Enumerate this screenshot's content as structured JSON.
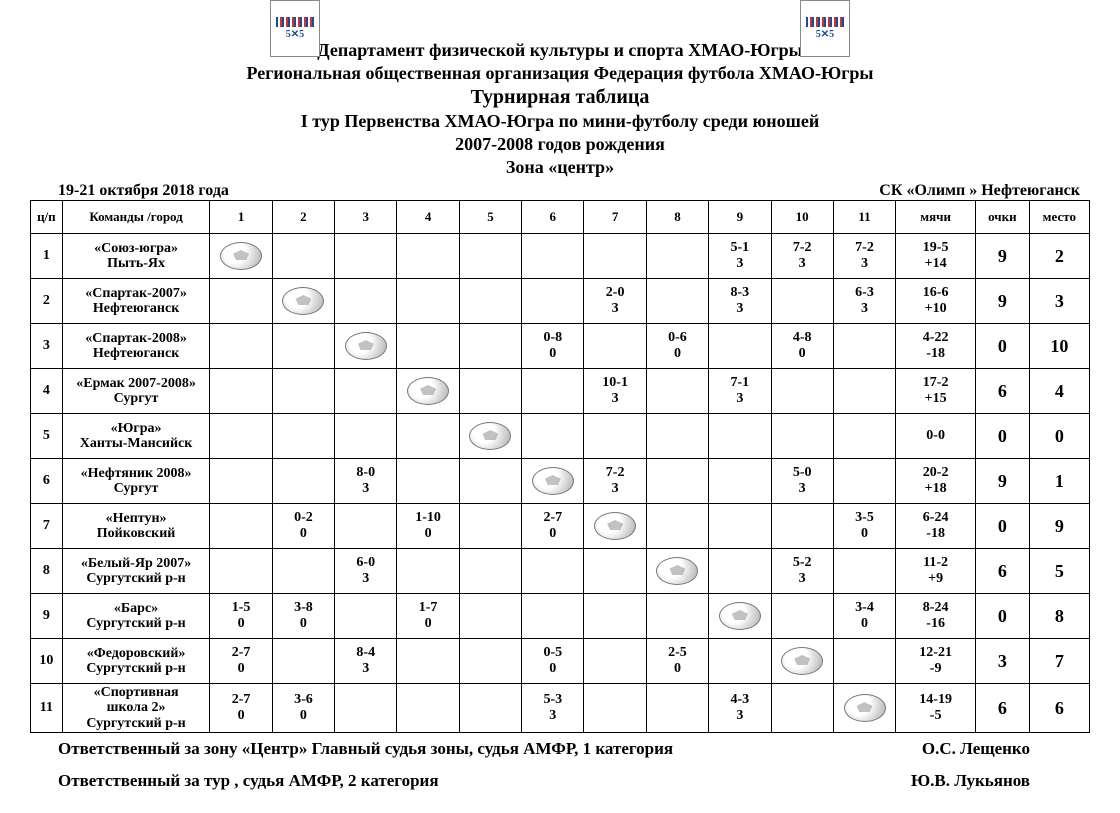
{
  "header": {
    "line1": "Департамент физической культуры и спорта ХМАО-Югры",
    "line2": "Региональная общественная организация  Федерация футбола  ХМАО-Югры",
    "title": "Турнирная  таблица",
    "sub1": "I тур   Первенства ХМАО-Югра по мини-футболу среди юношей",
    "sub2": "2007-2008 годов рождения",
    "sub3": "Зона  «центр»"
  },
  "meta": {
    "dates": "19-21 октября  2018  года",
    "venue": "СК «Олимп »  Нефтеюганск"
  },
  "columns": {
    "np": "ц/п",
    "team": "Команды /город",
    "c1": "1",
    "c2": "2",
    "c3": "3",
    "c4": "4",
    "c5": "5",
    "c6": "6",
    "c7": "7",
    "c8": "8",
    "c9": "9",
    "c10": "10",
    "c11": "11",
    "goals": "мячи",
    "points": "очки",
    "place": "место"
  },
  "teams": [
    {
      "n": "1",
      "name": "«Союз-югра»\nПыть-Ях"
    },
    {
      "n": "2",
      "name": "«Спартак-2007»\nНефтеюганск"
    },
    {
      "n": "3",
      "name": "«Спартак-2008»\nНефтеюганск"
    },
    {
      "n": "4",
      "name": "«Ермак 2007-2008»\nСургут"
    },
    {
      "n": "5",
      "name": "«Югра»\nХанты-Мансийск"
    },
    {
      "n": "6",
      "name": "«Нефтяник 2008»\nСургут"
    },
    {
      "n": "7",
      "name": "«Нептун»\nПойковский"
    },
    {
      "n": "8",
      "name": "«Белый-Яр 2007»\nСургутский р-н"
    },
    {
      "n": "9",
      "name": "«Барс»\nСургутский р-н"
    },
    {
      "n": "10",
      "name": "«Федоровский»\nСургутский р-н"
    },
    {
      "n": "11",
      "name": "«Спортивная\nшкола 2»\nСургутский р-н"
    }
  ],
  "cells": {
    "1": {
      "1": "BALL",
      "9": "5-1\n3",
      "10": "7-2\n3",
      "11": "7-2\n3"
    },
    "2": {
      "2": "BALL",
      "7": "2-0\n3",
      "9": "8-3\n3",
      "11": "6-3\n3"
    },
    "3": {
      "3": "BALL",
      "6": "0-8\n0",
      "8": "0-6\n0",
      "10": "4-8\n0"
    },
    "4": {
      "4": "BALL",
      "7": "10-1\n3",
      "9": "7-1\n3"
    },
    "5": {
      "5": "BALL"
    },
    "6": {
      "3": "8-0\n3",
      "6": "BALL",
      "7": "7-2\n3",
      "10": "5-0\n3"
    },
    "7": {
      "2": "0-2\n0",
      "4": "1-10\n0",
      "6": "2-7\n0",
      "7": "BALL",
      "11": "3-5\n0"
    },
    "8": {
      "3": "6-0\n3",
      "8": "BALL",
      "10": "5-2\n3"
    },
    "9": {
      "1": "1-5\n0",
      "2": "3-8\n0",
      "4": "1-7\n0",
      "9": "BALL",
      "11": "3-4\n0"
    },
    "10": {
      "1": "2-7\n0",
      "3": "8-4\n3",
      "6": "0-5\n0",
      "8": "2-5\n0",
      "10": "BALL"
    },
    "11": {
      "1": "2-7\n0",
      "2": "3-6\n0",
      "6": "5-3\n3",
      "9": "4-3\n3",
      "11": "BALL"
    }
  },
  "summary": {
    "1": {
      "goals": "19-5\n+14",
      "pts": "9",
      "place": "2"
    },
    "2": {
      "goals": "16-6\n+10",
      "pts": "9",
      "place": "3"
    },
    "3": {
      "goals": "4-22\n-18",
      "pts": "0",
      "place": "10"
    },
    "4": {
      "goals": "17-2\n+15",
      "pts": "6",
      "place": "4"
    },
    "5": {
      "goals": "0-0",
      "pts": "0",
      "place": "0"
    },
    "6": {
      "goals": "20-2\n+18",
      "pts": "9",
      "place": "1"
    },
    "7": {
      "goals": "6-24\n-18",
      "pts": "0",
      "place": "9"
    },
    "8": {
      "goals": "11-2\n+9",
      "pts": "6",
      "place": "5"
    },
    "9": {
      "goals": "8-24\n-16",
      "pts": "0",
      "place": "8"
    },
    "10": {
      "goals": "12-21\n-9",
      "pts": "3",
      "place": "7"
    },
    "11": {
      "goals": "14-19\n-5",
      "pts": "6",
      "place": "6"
    }
  },
  "footer": {
    "resp1_label": "Ответственный за зону «Центр» Главный судья зоны, судья АМФР, 1 категория",
    "resp1_name": "О.С. Лещенко",
    "resp2_label": "Ответственный за тур , судья АМФР,  2 категория",
    "resp2_name": "Ю.В. Лукьянов"
  }
}
